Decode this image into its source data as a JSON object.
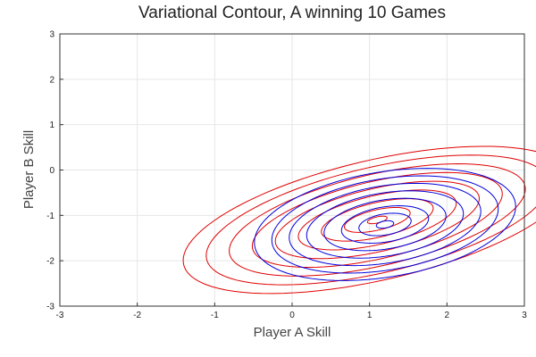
{
  "chart_data": {
    "type": "contour",
    "title": "Variational Contour, A winning 10 Games",
    "xlabel": "Player A Skill",
    "ylabel": "Player B Skill",
    "xlim": [
      -3,
      3
    ],
    "ylim": [
      -3,
      3
    ],
    "xticks": [
      -3,
      -2,
      -1,
      0,
      1,
      2,
      3
    ],
    "yticks": [
      -3,
      -2,
      -1,
      0,
      1,
      2,
      3
    ],
    "grid": true,
    "legend": "none",
    "series": [
      {
        "color": "#e00000",
        "center": [
          1.1,
          -1.1
        ],
        "sigma_x": 0.85,
        "sigma_y": 0.55,
        "rho": 0.55,
        "levels": [
          0.15,
          0.5,
          0.85,
          1.2,
          1.55,
          1.9,
          2.25,
          2.6,
          2.95
        ]
      },
      {
        "color": "#0000dd",
        "center": [
          1.2,
          -1.2
        ],
        "sigma_x": 0.75,
        "sigma_y": 0.55,
        "rho": 0.32,
        "levels": [
          0.15,
          0.45,
          0.75,
          1.05,
          1.35,
          1.65,
          1.95,
          2.25
        ]
      }
    ]
  }
}
